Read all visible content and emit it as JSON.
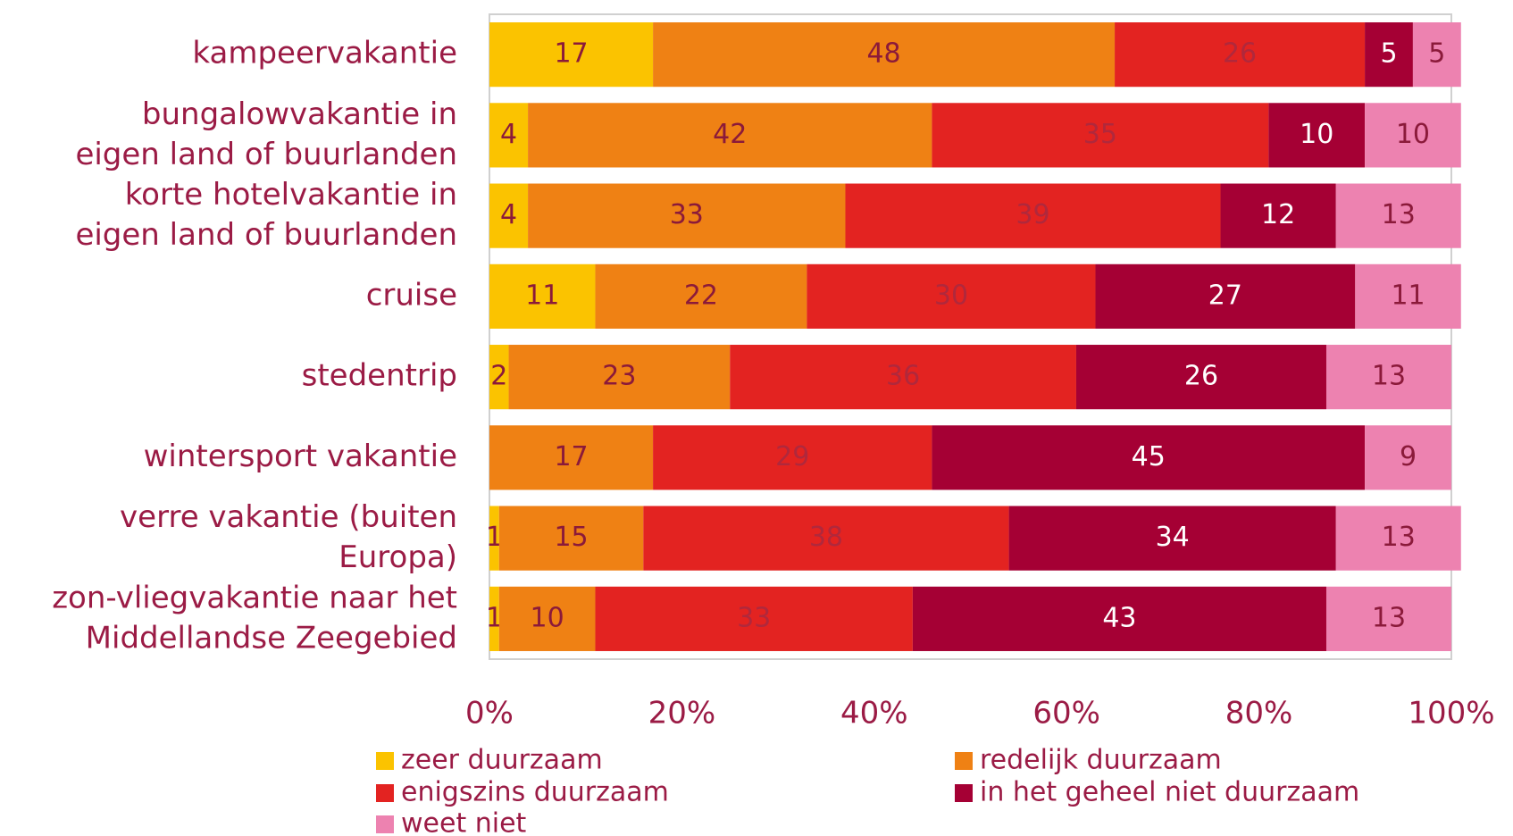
{
  "chart_data": {
    "type": "stacked_barh",
    "categories": [
      "kampeervakantie",
      "bungalowvakantie in\neigen land of buurlanden",
      "korte hotelvakantie in\neigen land of buurlanden",
      "cruise",
      "stedentrip",
      "wintersport vakantie",
      "verre vakantie (buiten\nEuropa)",
      "zon-vliegvakantie naar het\nMiddellandse Zeegebied"
    ],
    "series": [
      {
        "name": "zeer duurzaam",
        "color": "#fbc300",
        "label_color": "#8b1a3a",
        "values": [
          17,
          4,
          4,
          11,
          2,
          null,
          1,
          1
        ]
      },
      {
        "name": "redelijk duurzaam",
        "color": "#ef8114",
        "label_color": "#8b1a3a",
        "values": [
          48,
          42,
          33,
          22,
          23,
          17,
          15,
          10
        ]
      },
      {
        "name": "enigszins duurzaam",
        "color": "#e32321",
        "label_color": "#b0283c",
        "values": [
          26,
          35,
          39,
          30,
          36,
          29,
          38,
          33
        ]
      },
      {
        "name": "in het geheel niet duurzaam",
        "color": "#a50034",
        "label_color": "#ffffff",
        "values": [
          5,
          10,
          12,
          27,
          26,
          45,
          34,
          43
        ]
      },
      {
        "name": "weet niet",
        "color": "#ed82b0",
        "label_color": "#8b1a3a",
        "values": [
          5,
          10,
          13,
          11,
          13,
          9,
          13,
          13
        ]
      }
    ],
    "xlim": [
      0,
      100
    ],
    "xticks": [
      {
        "value": 0,
        "label": "0%"
      },
      {
        "value": 20,
        "label": "20%"
      },
      {
        "value": 40,
        "label": "40%"
      },
      {
        "value": 60,
        "label": "60%"
      },
      {
        "value": 80,
        "label": "80%"
      },
      {
        "value": 100,
        "label": "100%"
      }
    ]
  }
}
